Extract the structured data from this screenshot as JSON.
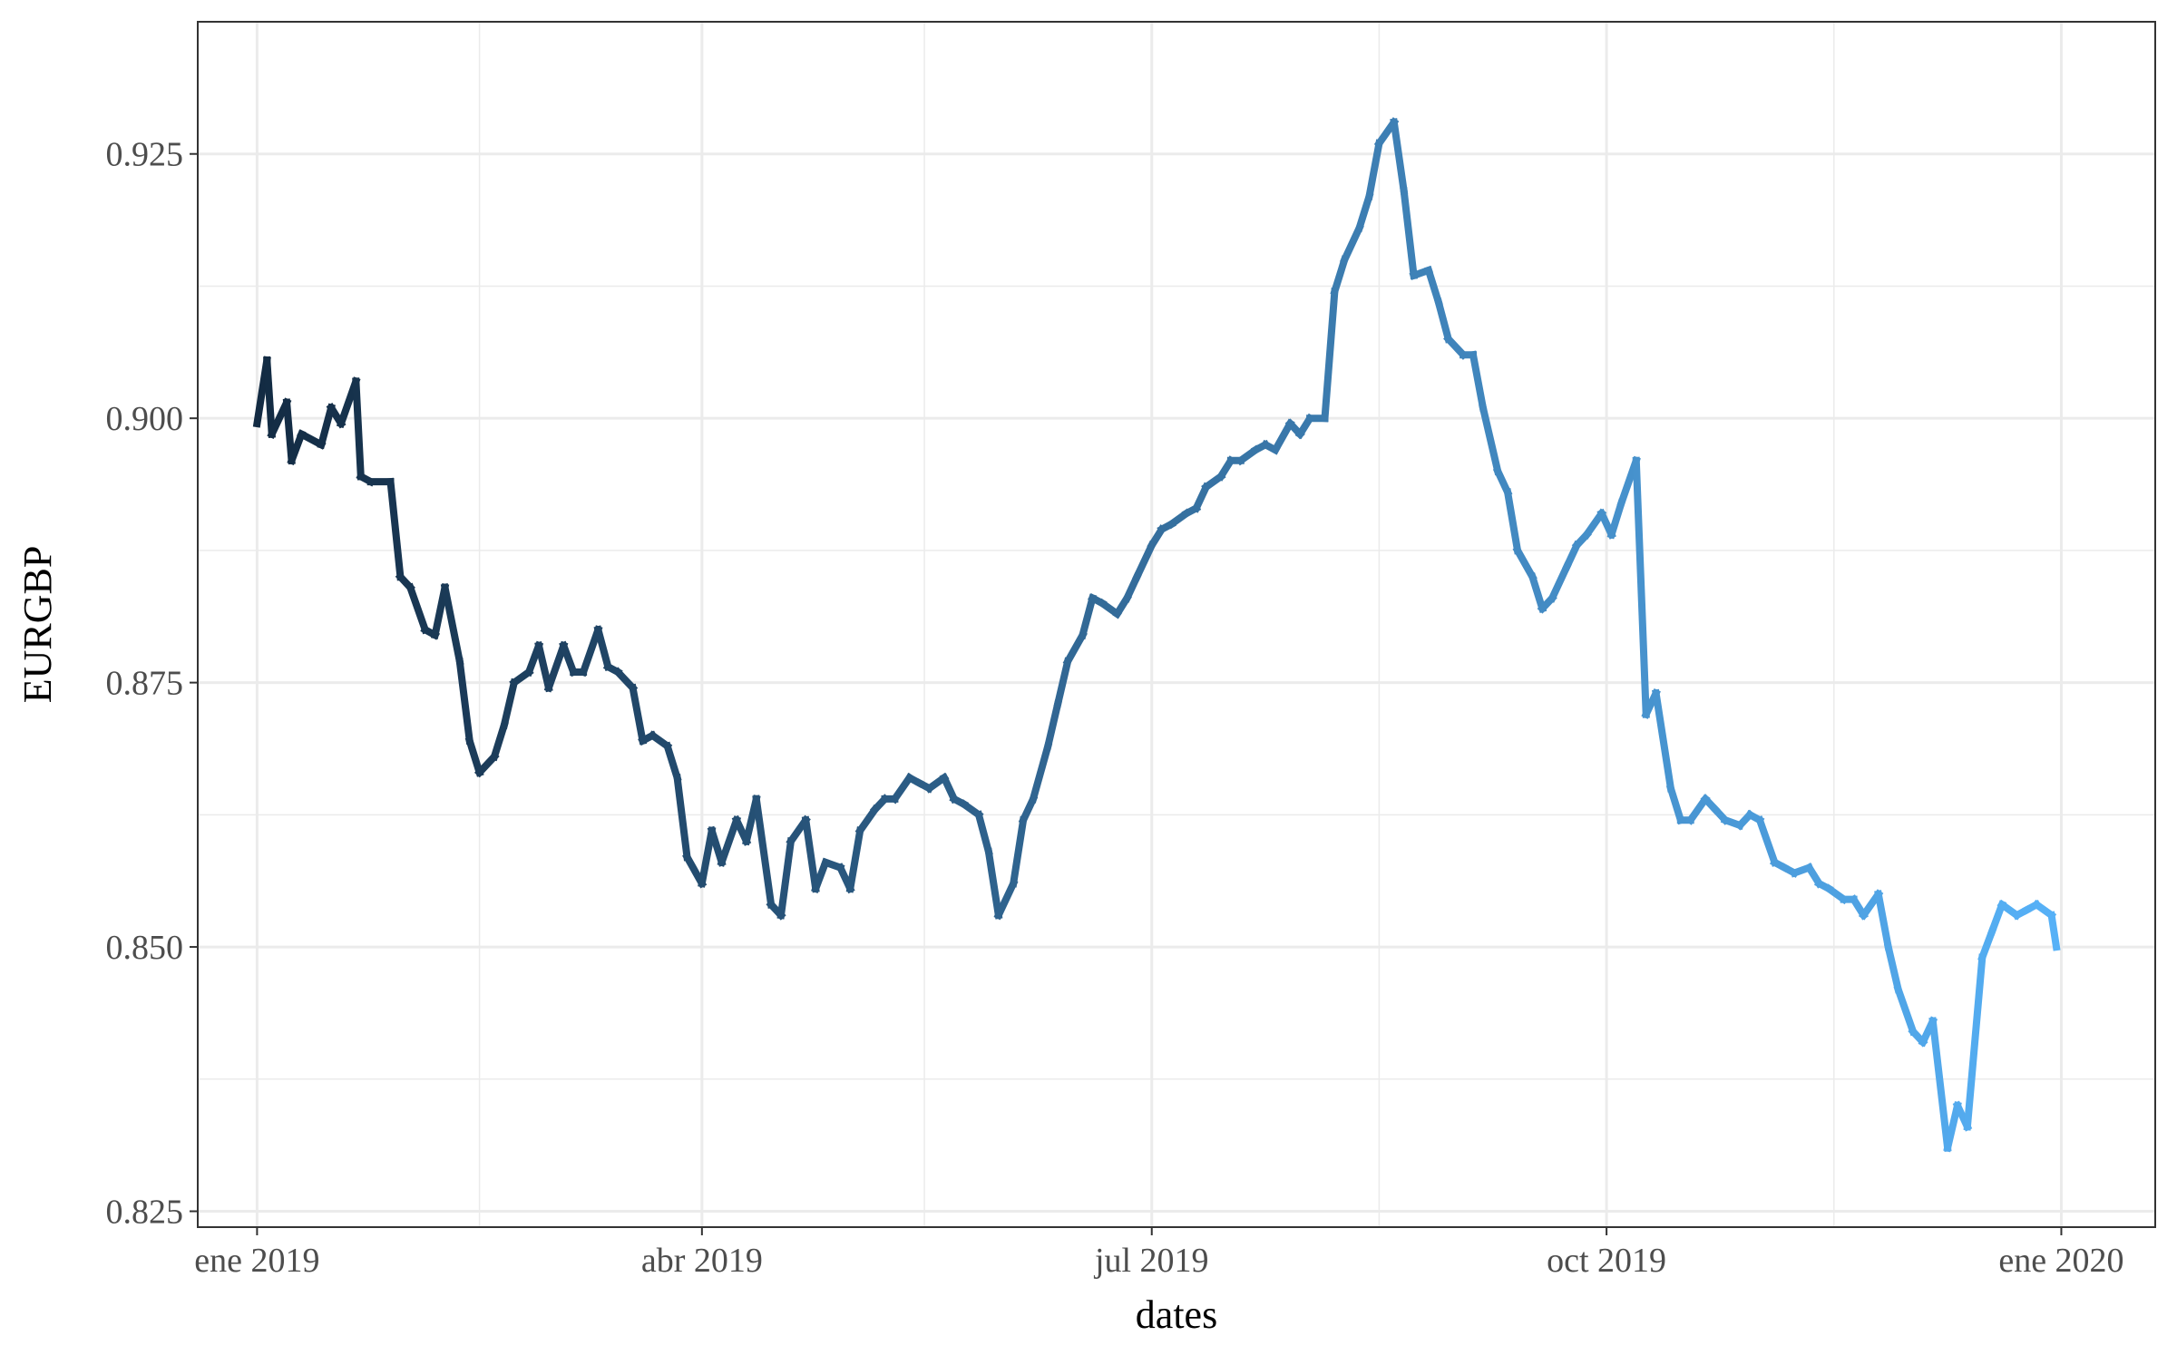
{
  "chart_data": {
    "type": "line",
    "title": "",
    "xlabel": "dates",
    "ylabel": "EURGBP",
    "ylim": [
      0.8235,
      0.9375
    ],
    "grid": true,
    "legend": "none",
    "y_ticks": [
      0.825,
      0.85,
      0.875,
      0.9,
      0.925
    ],
    "y_tick_labels": [
      "0.825",
      "0.850",
      "0.875",
      "0.900",
      "0.925"
    ],
    "x_ticks": [
      "2019-01-01",
      "2019-04-01",
      "2019-07-01",
      "2019-10-01",
      "2020-01-01"
    ],
    "x_tick_labels": [
      "ene 2019",
      "abr 2019",
      "jul 2019",
      "oct 2019",
      "ene 2020"
    ],
    "x_minor_ticks": [
      "2019-02-15",
      "2019-05-16",
      "2019-08-16",
      "2019-11-16"
    ],
    "xlim": [
      "2018-12-20",
      "2020-01-20"
    ],
    "color_gradient": [
      "#132b43",
      "#56b1f7"
    ],
    "series": [
      {
        "name": "EURGBP",
        "points": [
          [
            "2019-01-01",
            0.8995
          ],
          [
            "2019-01-03",
            0.9055
          ],
          [
            "2019-01-04",
            0.8985
          ],
          [
            "2019-01-07",
            0.9015
          ],
          [
            "2019-01-08",
            0.896
          ],
          [
            "2019-01-10",
            0.8985
          ],
          [
            "2019-01-14",
            0.8975
          ],
          [
            "2019-01-16",
            0.901
          ],
          [
            "2019-01-18",
            0.8995
          ],
          [
            "2019-01-21",
            0.9035
          ],
          [
            "2019-01-22",
            0.8945
          ],
          [
            "2019-01-24",
            0.894
          ],
          [
            "2019-01-28",
            0.894
          ],
          [
            "2019-01-30",
            0.885
          ],
          [
            "2019-02-01",
            0.884
          ],
          [
            "2019-02-04",
            0.88
          ],
          [
            "2019-02-06",
            0.8795
          ],
          [
            "2019-02-08",
            0.884
          ],
          [
            "2019-02-11",
            0.877
          ],
          [
            "2019-02-13",
            0.8695
          ],
          [
            "2019-02-15",
            0.8665
          ],
          [
            "2019-02-18",
            0.868
          ],
          [
            "2019-02-20",
            0.871
          ],
          [
            "2019-02-22",
            0.875
          ],
          [
            "2019-02-25",
            0.876
          ],
          [
            "2019-02-27",
            0.8785
          ],
          [
            "2019-03-01",
            0.8745
          ],
          [
            "2019-03-04",
            0.8785
          ],
          [
            "2019-03-06",
            0.876
          ],
          [
            "2019-03-08",
            0.876
          ],
          [
            "2019-03-11",
            0.88
          ],
          [
            "2019-03-13",
            0.8765
          ],
          [
            "2019-03-15",
            0.876
          ],
          [
            "2019-03-18",
            0.8745
          ],
          [
            "2019-03-20",
            0.8695
          ],
          [
            "2019-03-22",
            0.87
          ],
          [
            "2019-03-25",
            0.869
          ],
          [
            "2019-03-27",
            0.866
          ],
          [
            "2019-03-29",
            0.8585
          ],
          [
            "2019-04-01",
            0.856
          ],
          [
            "2019-04-03",
            0.861
          ],
          [
            "2019-04-05",
            0.858
          ],
          [
            "2019-04-08",
            0.862
          ],
          [
            "2019-04-10",
            0.86
          ],
          [
            "2019-04-12",
            0.864
          ],
          [
            "2019-04-15",
            0.854
          ],
          [
            "2019-04-17",
            0.853
          ],
          [
            "2019-04-19",
            0.86
          ],
          [
            "2019-04-22",
            0.862
          ],
          [
            "2019-04-24",
            0.8555
          ],
          [
            "2019-04-26",
            0.858
          ],
          [
            "2019-04-29",
            0.8575
          ],
          [
            "2019-05-01",
            0.8555
          ],
          [
            "2019-05-03",
            0.861
          ],
          [
            "2019-05-06",
            0.863
          ],
          [
            "2019-05-08",
            0.864
          ],
          [
            "2019-05-10",
            0.864
          ],
          [
            "2019-05-13",
            0.866
          ],
          [
            "2019-05-15",
            0.8655
          ],
          [
            "2019-05-17",
            0.865
          ],
          [
            "2019-05-20",
            0.866
          ],
          [
            "2019-05-22",
            0.864
          ],
          [
            "2019-05-24",
            0.8635
          ],
          [
            "2019-05-27",
            0.8625
          ],
          [
            "2019-05-29",
            0.859
          ],
          [
            "2019-05-31",
            0.853
          ],
          [
            "2019-06-03",
            0.856
          ],
          [
            "2019-06-05",
            0.862
          ],
          [
            "2019-06-07",
            0.864
          ],
          [
            "2019-06-10",
            0.869
          ],
          [
            "2019-06-12",
            0.873
          ],
          [
            "2019-06-14",
            0.877
          ],
          [
            "2019-06-17",
            0.8795
          ],
          [
            "2019-06-19",
            0.883
          ],
          [
            "2019-06-21",
            0.8825
          ],
          [
            "2019-06-24",
            0.8815
          ],
          [
            "2019-06-26",
            0.883
          ],
          [
            "2019-06-28",
            0.885
          ],
          [
            "2019-07-01",
            0.888
          ],
          [
            "2019-07-03",
            0.8895
          ],
          [
            "2019-07-05",
            0.89
          ],
          [
            "2019-07-08",
            0.891
          ],
          [
            "2019-07-10",
            0.8915
          ],
          [
            "2019-07-12",
            0.8935
          ],
          [
            "2019-07-15",
            0.8945
          ],
          [
            "2019-07-17",
            0.896
          ],
          [
            "2019-07-19",
            0.896
          ],
          [
            "2019-07-22",
            0.897
          ],
          [
            "2019-07-24",
            0.8975
          ],
          [
            "2019-07-26",
            0.897
          ],
          [
            "2019-07-29",
            0.8995
          ],
          [
            "2019-07-31",
            0.8985
          ],
          [
            "2019-08-02",
            0.9
          ],
          [
            "2019-08-05",
            0.9
          ],
          [
            "2019-08-07",
            0.912
          ],
          [
            "2019-08-09",
            0.915
          ],
          [
            "2019-08-12",
            0.918
          ],
          [
            "2019-08-14",
            0.921
          ],
          [
            "2019-08-16",
            0.926
          ],
          [
            "2019-08-19",
            0.928
          ],
          [
            "2019-08-21",
            0.9215
          ],
          [
            "2019-08-23",
            0.9135
          ],
          [
            "2019-08-26",
            0.914
          ],
          [
            "2019-08-28",
            0.911
          ],
          [
            "2019-08-30",
            0.9075
          ],
          [
            "2019-09-02",
            0.906
          ],
          [
            "2019-09-04",
            0.906
          ],
          [
            "2019-09-06",
            0.901
          ],
          [
            "2019-09-09",
            0.895
          ],
          [
            "2019-09-11",
            0.893
          ],
          [
            "2019-09-13",
            0.8875
          ],
          [
            "2019-09-16",
            0.885
          ],
          [
            "2019-09-18",
            0.882
          ],
          [
            "2019-09-20",
            0.883
          ],
          [
            "2019-09-23",
            0.886
          ],
          [
            "2019-09-25",
            0.888
          ],
          [
            "2019-09-27",
            0.889
          ],
          [
            "2019-09-30",
            0.891
          ],
          [
            "2019-10-02",
            0.889
          ],
          [
            "2019-10-04",
            0.892
          ],
          [
            "2019-10-07",
            0.896
          ],
          [
            "2019-10-09",
            0.872
          ],
          [
            "2019-10-11",
            0.874
          ],
          [
            "2019-10-14",
            0.865
          ],
          [
            "2019-10-16",
            0.862
          ],
          [
            "2019-10-18",
            0.862
          ],
          [
            "2019-10-21",
            0.864
          ],
          [
            "2019-10-23",
            0.863
          ],
          [
            "2019-10-25",
            0.862
          ],
          [
            "2019-10-28",
            0.8615
          ],
          [
            "2019-10-30",
            0.8625
          ],
          [
            "2019-11-01",
            0.862
          ],
          [
            "2019-11-04",
            0.858
          ],
          [
            "2019-11-06",
            0.8575
          ],
          [
            "2019-11-08",
            0.857
          ],
          [
            "2019-11-11",
            0.8575
          ],
          [
            "2019-11-13",
            0.856
          ],
          [
            "2019-11-15",
            0.8555
          ],
          [
            "2019-11-18",
            0.8545
          ],
          [
            "2019-11-20",
            0.8545
          ],
          [
            "2019-11-22",
            0.853
          ],
          [
            "2019-11-25",
            0.855
          ],
          [
            "2019-11-27",
            0.85
          ],
          [
            "2019-11-29",
            0.846
          ],
          [
            "2019-12-02",
            0.842
          ],
          [
            "2019-12-04",
            0.841
          ],
          [
            "2019-12-06",
            0.843
          ],
          [
            "2019-12-09",
            0.831
          ],
          [
            "2019-12-11",
            0.835
          ],
          [
            "2019-12-13",
            0.833
          ],
          [
            "2019-12-16",
            0.849
          ],
          [
            "2019-12-18",
            0.8515
          ],
          [
            "2019-12-20",
            0.854
          ],
          [
            "2019-12-23",
            0.853
          ],
          [
            "2019-12-25",
            0.8535
          ],
          [
            "2019-12-27",
            0.854
          ],
          [
            "2019-12-30",
            0.853
          ],
          [
            "2019-12-31",
            0.85
          ]
        ]
      }
    ]
  }
}
